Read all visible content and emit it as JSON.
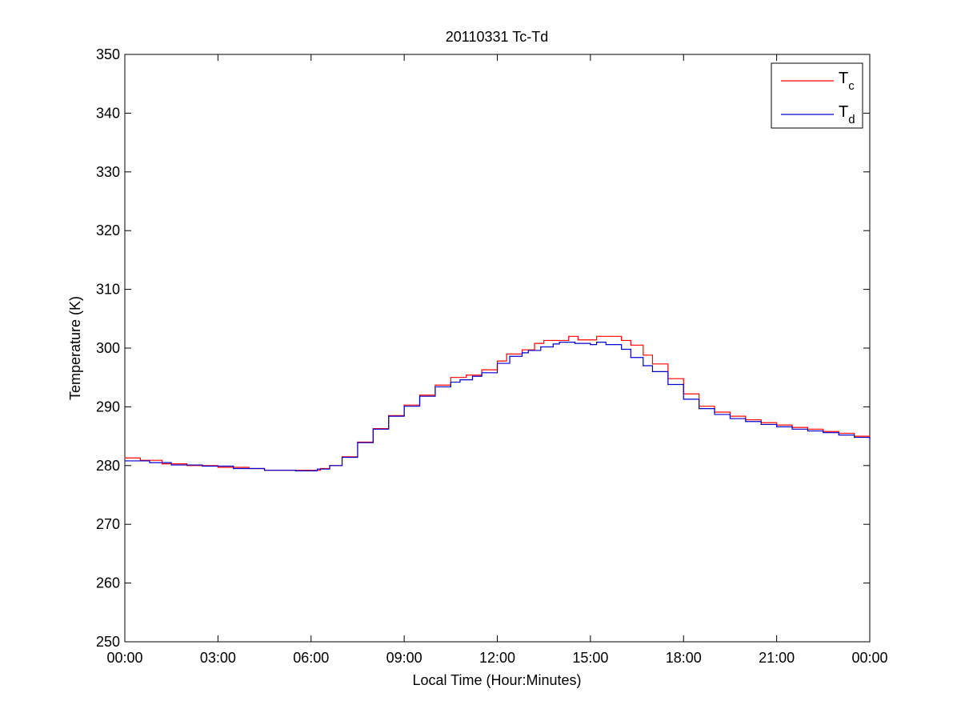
{
  "chart_data": {
    "type": "line",
    "title": "20110331 Tc-Td",
    "xlabel": "Local Time (Hour:Minutes)",
    "ylabel": "Temperature (K)",
    "xlim": [
      0,
      24
    ],
    "ylim": [
      250,
      350
    ],
    "xticks": [
      0,
      3,
      6,
      9,
      12,
      15,
      18,
      21,
      24
    ],
    "xtick_labels": [
      "00:00",
      "03:00",
      "06:00",
      "09:00",
      "12:00",
      "15:00",
      "18:00",
      "21:00",
      "00:00"
    ],
    "yticks": [
      250,
      260,
      270,
      280,
      290,
      300,
      310,
      320,
      330,
      340,
      350
    ],
    "ytick_labels": [
      "250",
      "260",
      "270",
      "280",
      "290",
      "300",
      "310",
      "320",
      "330",
      "340",
      "350"
    ],
    "grid": false,
    "legend": {
      "position": "top-right"
    },
    "series": [
      {
        "name": "Tc",
        "legend_base": "T",
        "legend_sub": "c",
        "color": "#ff0000",
        "step": true,
        "points": [
          [
            0.0,
            281.3
          ],
          [
            0.5,
            280.9
          ],
          [
            1.2,
            280.3
          ],
          [
            2.0,
            280.0
          ],
          [
            3.0,
            279.7
          ],
          [
            4.0,
            279.5
          ],
          [
            4.5,
            279.2
          ],
          [
            5.5,
            279.2
          ],
          [
            6.0,
            279.2
          ],
          [
            6.3,
            279.5
          ],
          [
            6.6,
            280.0
          ],
          [
            7.0,
            281.5
          ],
          [
            7.5,
            284.0
          ],
          [
            8.0,
            286.3
          ],
          [
            8.5,
            288.5
          ],
          [
            9.0,
            290.3
          ],
          [
            9.5,
            292.0
          ],
          [
            10.0,
            293.7
          ],
          [
            10.5,
            295.0
          ],
          [
            11.0,
            295.4
          ],
          [
            11.5,
            296.3
          ],
          [
            12.0,
            297.8
          ],
          [
            12.3,
            299.0
          ],
          [
            12.8,
            299.7
          ],
          [
            13.2,
            300.8
          ],
          [
            13.5,
            301.3
          ],
          [
            14.0,
            301.3
          ],
          [
            14.3,
            302.0
          ],
          [
            14.6,
            301.4
          ],
          [
            15.0,
            301.4
          ],
          [
            15.2,
            302.0
          ],
          [
            15.7,
            302.0
          ],
          [
            16.0,
            301.3
          ],
          [
            16.3,
            300.5
          ],
          [
            16.7,
            298.8
          ],
          [
            17.0,
            297.3
          ],
          [
            17.5,
            294.8
          ],
          [
            18.0,
            292.2
          ],
          [
            18.5,
            290.1
          ],
          [
            19.0,
            289.1
          ],
          [
            19.5,
            288.4
          ],
          [
            20.0,
            287.8
          ],
          [
            20.5,
            287.3
          ],
          [
            21.0,
            286.9
          ],
          [
            21.5,
            286.5
          ],
          [
            22.0,
            286.2
          ],
          [
            22.5,
            285.8
          ],
          [
            23.0,
            285.5
          ],
          [
            23.5,
            285.0
          ],
          [
            24.0,
            284.6
          ]
        ]
      },
      {
        "name": "Td",
        "legend_base": "T",
        "legend_sub": "d",
        "color": "#0000cc",
        "step": true,
        "points": [
          [
            0.0,
            280.8
          ],
          [
            0.8,
            280.5
          ],
          [
            1.5,
            280.1
          ],
          [
            2.5,
            279.9
          ],
          [
            3.5,
            279.5
          ],
          [
            4.5,
            279.2
          ],
          [
            5.5,
            279.1
          ],
          [
            6.0,
            279.1
          ],
          [
            6.2,
            279.4
          ],
          [
            6.6,
            280.0
          ],
          [
            7.0,
            281.4
          ],
          [
            7.5,
            283.9
          ],
          [
            8.0,
            286.2
          ],
          [
            8.5,
            288.4
          ],
          [
            9.0,
            290.1
          ],
          [
            9.5,
            291.8
          ],
          [
            10.0,
            293.4
          ],
          [
            10.5,
            294.2
          ],
          [
            10.8,
            294.6
          ],
          [
            11.2,
            295.2
          ],
          [
            11.5,
            295.8
          ],
          [
            12.0,
            297.4
          ],
          [
            12.4,
            298.6
          ],
          [
            12.8,
            299.2
          ],
          [
            13.0,
            299.6
          ],
          [
            13.4,
            300.2
          ],
          [
            13.8,
            300.7
          ],
          [
            14.0,
            301.0
          ],
          [
            14.5,
            300.8
          ],
          [
            15.0,
            300.6
          ],
          [
            15.2,
            301.0
          ],
          [
            15.5,
            300.6
          ],
          [
            16.0,
            299.8
          ],
          [
            16.3,
            298.4
          ],
          [
            16.7,
            297.0
          ],
          [
            17.0,
            296.0
          ],
          [
            17.5,
            293.8
          ],
          [
            18.0,
            291.3
          ],
          [
            18.5,
            289.7
          ],
          [
            19.0,
            288.7
          ],
          [
            19.5,
            288.0
          ],
          [
            20.0,
            287.5
          ],
          [
            20.5,
            287.0
          ],
          [
            21.0,
            286.6
          ],
          [
            21.5,
            286.2
          ],
          [
            22.0,
            285.9
          ],
          [
            22.5,
            285.6
          ],
          [
            23.0,
            285.2
          ],
          [
            23.5,
            284.8
          ],
          [
            24.0,
            284.3
          ]
        ]
      }
    ]
  }
}
